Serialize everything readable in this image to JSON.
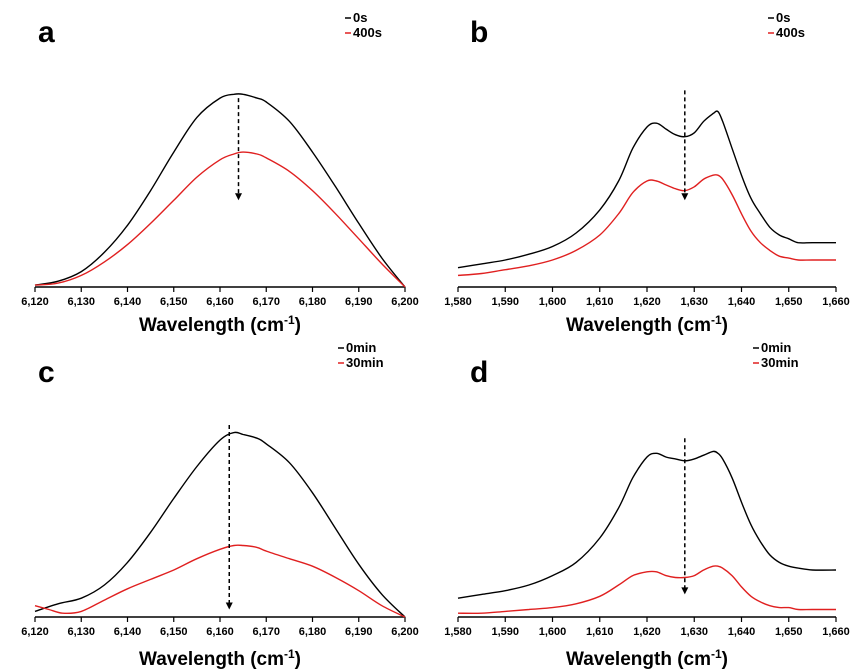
{
  "colors": {
    "series0": "#000000",
    "series1": "#e02020",
    "arrow": "#000000",
    "axis": "#000000"
  },
  "chart_data": [
    {
      "panel": "a",
      "type": "line",
      "xlabel": "Wavelength (cm",
      "xlabel_sup": "-1",
      "xlabel_end": ")",
      "xlim": [
        6120,
        6200
      ],
      "ylim": [
        0,
        1.1
      ],
      "xticks": [
        "6,120",
        "6,130",
        "6,140",
        "6,150",
        "6,160",
        "6,170",
        "6,180",
        "6,190",
        "6,200"
      ],
      "arrow_x": 6164,
      "arrow_y": [
        0.98,
        0.45
      ],
      "legend": [
        "0s",
        "400s"
      ],
      "series": [
        {
          "name": "0s",
          "color": "#000000",
          "x": [
            6120,
            6125,
            6130,
            6135,
            6140,
            6145,
            6150,
            6155,
            6160,
            6163,
            6165,
            6168,
            6170,
            6175,
            6180,
            6185,
            6190,
            6195,
            6200
          ],
          "y": [
            0.01,
            0.03,
            0.08,
            0.18,
            0.32,
            0.5,
            0.7,
            0.88,
            0.98,
            1.0,
            1.0,
            0.98,
            0.96,
            0.86,
            0.7,
            0.52,
            0.33,
            0.15,
            0.0
          ]
        },
        {
          "name": "400s",
          "color": "#e02020",
          "x": [
            6120,
            6125,
            6130,
            6135,
            6140,
            6145,
            6150,
            6155,
            6160,
            6163,
            6165,
            6168,
            6170,
            6175,
            6180,
            6185,
            6190,
            6195,
            6200
          ],
          "y": [
            0.01,
            0.02,
            0.06,
            0.13,
            0.22,
            0.33,
            0.45,
            0.57,
            0.66,
            0.69,
            0.7,
            0.69,
            0.67,
            0.6,
            0.5,
            0.38,
            0.25,
            0.12,
            0.0
          ]
        }
      ]
    },
    {
      "panel": "b",
      "type": "line",
      "xlabel": "Wavelength (cm",
      "xlabel_sup": "-1",
      "xlabel_end": ")",
      "xlim": [
        1580,
        1660
      ],
      "ylim": [
        0,
        1.1
      ],
      "xticks": [
        "1,580",
        "1,590",
        "1,600",
        "1,610",
        "1,620",
        "1,630",
        "1,640",
        "1,650",
        "1,660"
      ],
      "arrow_x": 1628,
      "arrow_y": [
        1.02,
        0.45
      ],
      "legend": [
        "0s",
        "400s"
      ],
      "series": [
        {
          "name": "0s",
          "color": "#000000",
          "x": [
            1580,
            1585,
            1590,
            1595,
            1600,
            1605,
            1610,
            1614,
            1617,
            1620,
            1622,
            1624,
            1626,
            1628,
            1630,
            1632,
            1634,
            1635,
            1636,
            1638,
            1640,
            1642,
            1644,
            1646,
            1648,
            1650,
            1652,
            1655,
            1660
          ],
          "y": [
            0.1,
            0.12,
            0.14,
            0.17,
            0.21,
            0.28,
            0.4,
            0.55,
            0.72,
            0.83,
            0.85,
            0.82,
            0.79,
            0.78,
            0.8,
            0.86,
            0.9,
            0.91,
            0.86,
            0.72,
            0.58,
            0.46,
            0.38,
            0.31,
            0.27,
            0.25,
            0.23,
            0.23,
            0.23
          ]
        },
        {
          "name": "400s",
          "color": "#e02020",
          "x": [
            1580,
            1585,
            1590,
            1595,
            1600,
            1605,
            1610,
            1614,
            1617,
            1620,
            1622,
            1624,
            1626,
            1628,
            1630,
            1632,
            1634,
            1635,
            1636,
            1638,
            1640,
            1642,
            1644,
            1646,
            1648,
            1650,
            1652,
            1655,
            1660
          ],
          "y": [
            0.06,
            0.07,
            0.09,
            0.11,
            0.14,
            0.19,
            0.27,
            0.38,
            0.49,
            0.55,
            0.55,
            0.53,
            0.51,
            0.5,
            0.52,
            0.56,
            0.58,
            0.58,
            0.56,
            0.48,
            0.38,
            0.29,
            0.23,
            0.19,
            0.16,
            0.15,
            0.14,
            0.14,
            0.14
          ]
        }
      ]
    },
    {
      "panel": "c",
      "type": "line",
      "xlabel": "Wavelength (cm",
      "xlabel_sup": "-1",
      "xlabel_end": ")",
      "xlim": [
        6120,
        6200
      ],
      "ylim": [
        0,
        1.1
      ],
      "xticks": [
        "6,120",
        "6,130",
        "6,140",
        "6,150",
        "6,160",
        "6,170",
        "6,180",
        "6,190",
        "6,200"
      ],
      "arrow_x": 6162,
      "arrow_y": [
        1.02,
        0.04
      ],
      "legend": [
        "0min",
        "30min"
      ],
      "series": [
        {
          "name": "0min",
          "color": "#000000",
          "x": [
            6120,
            6125,
            6130,
            6135,
            6140,
            6145,
            6150,
            6155,
            6160,
            6163,
            6165,
            6168,
            6170,
            6175,
            6180,
            6185,
            6190,
            6195,
            6200
          ],
          "y": [
            0.03,
            0.07,
            0.1,
            0.17,
            0.29,
            0.45,
            0.63,
            0.8,
            0.94,
            0.98,
            0.97,
            0.95,
            0.92,
            0.82,
            0.66,
            0.47,
            0.28,
            0.12,
            0.0
          ]
        },
        {
          "name": "30min",
          "color": "#e02020",
          "x": [
            6120,
            6123,
            6126,
            6130,
            6135,
            6140,
            6145,
            6150,
            6155,
            6160,
            6163,
            6165,
            6168,
            6170,
            6175,
            6180,
            6185,
            6190,
            6195,
            6200
          ],
          "y": [
            0.06,
            0.04,
            0.02,
            0.03,
            0.09,
            0.15,
            0.2,
            0.25,
            0.31,
            0.36,
            0.38,
            0.38,
            0.37,
            0.35,
            0.31,
            0.27,
            0.21,
            0.14,
            0.06,
            0.0
          ]
        }
      ]
    },
    {
      "panel": "d",
      "type": "line",
      "xlabel": "Wavelength (cm",
      "xlabel_sup": "-1",
      "xlabel_end": ")",
      "xlim": [
        1580,
        1660
      ],
      "ylim": [
        0,
        1.1
      ],
      "xticks": [
        "1,580",
        "1,590",
        "1,600",
        "1,610",
        "1,620",
        "1,630",
        "1,640",
        "1,650",
        "1,660"
      ],
      "arrow_x": 1628,
      "arrow_y": [
        0.95,
        0.12
      ],
      "legend": [
        "0min",
        "30min"
      ],
      "series": [
        {
          "name": "0min",
          "color": "#000000",
          "x": [
            1580,
            1585,
            1590,
            1595,
            1600,
            1605,
            1610,
            1614,
            1617,
            1620,
            1622,
            1624,
            1626,
            1628,
            1630,
            1632,
            1634,
            1635,
            1636,
            1638,
            1640,
            1642,
            1644,
            1646,
            1648,
            1650,
            1652,
            1655,
            1660
          ],
          "y": [
            0.1,
            0.12,
            0.14,
            0.17,
            0.22,
            0.29,
            0.42,
            0.58,
            0.74,
            0.85,
            0.87,
            0.85,
            0.84,
            0.83,
            0.84,
            0.86,
            0.88,
            0.87,
            0.84,
            0.74,
            0.61,
            0.49,
            0.4,
            0.33,
            0.29,
            0.27,
            0.26,
            0.25,
            0.25
          ]
        },
        {
          "name": "30min",
          "color": "#e02020",
          "x": [
            1580,
            1585,
            1590,
            1595,
            1600,
            1605,
            1610,
            1614,
            1617,
            1620,
            1622,
            1624,
            1626,
            1628,
            1630,
            1632,
            1634,
            1635,
            1636,
            1638,
            1640,
            1642,
            1644,
            1646,
            1648,
            1650,
            1652,
            1655,
            1660
          ],
          "y": [
            0.02,
            0.02,
            0.03,
            0.04,
            0.05,
            0.07,
            0.11,
            0.17,
            0.22,
            0.24,
            0.24,
            0.22,
            0.21,
            0.21,
            0.22,
            0.25,
            0.27,
            0.27,
            0.26,
            0.22,
            0.16,
            0.11,
            0.08,
            0.06,
            0.05,
            0.05,
            0.04,
            0.04,
            0.04
          ]
        }
      ]
    }
  ]
}
